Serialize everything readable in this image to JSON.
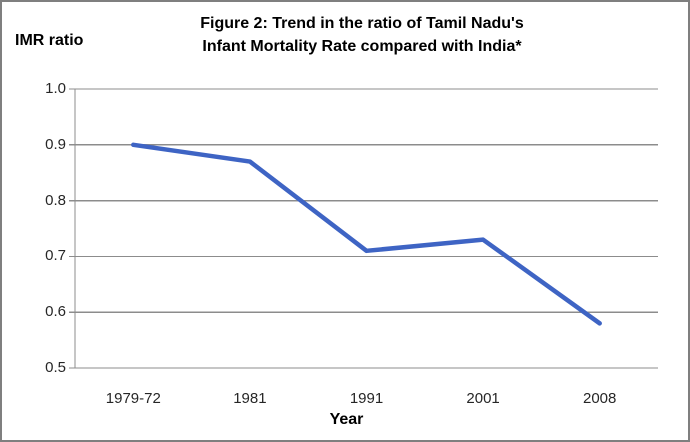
{
  "chart_data": {
    "type": "line",
    "title_lines": [
      "Figure 2: Trend in the ratio of Tamil Nadu's",
      "Infant Mortality Rate compared with India*"
    ],
    "title": "Figure 2: Trend in the ratio of Tamil Nadu's Infant Mortality Rate compared with India*",
    "categories": [
      "1979-72",
      "1981",
      "1991",
      "2001",
      "2008"
    ],
    "values": [
      0.9,
      0.87,
      0.71,
      0.73,
      0.58
    ],
    "xlabel": "Year",
    "ylabel": "IMR ratio",
    "ylim": [
      0.5,
      1.0
    ],
    "ytick_step": 0.1,
    "ytick_labels": [
      "1.0",
      "0.9",
      "0.8",
      "0.7",
      "0.6",
      "0.5"
    ],
    "grid": true,
    "legend_position": "none",
    "colors": {
      "line": "#3e64c4",
      "grid": "#8c8c8c",
      "axis": "#8c8c8c",
      "text": "#262626",
      "title_text": "#000000",
      "frame_border": "#7f7f7f",
      "background": "#ffffff"
    }
  }
}
